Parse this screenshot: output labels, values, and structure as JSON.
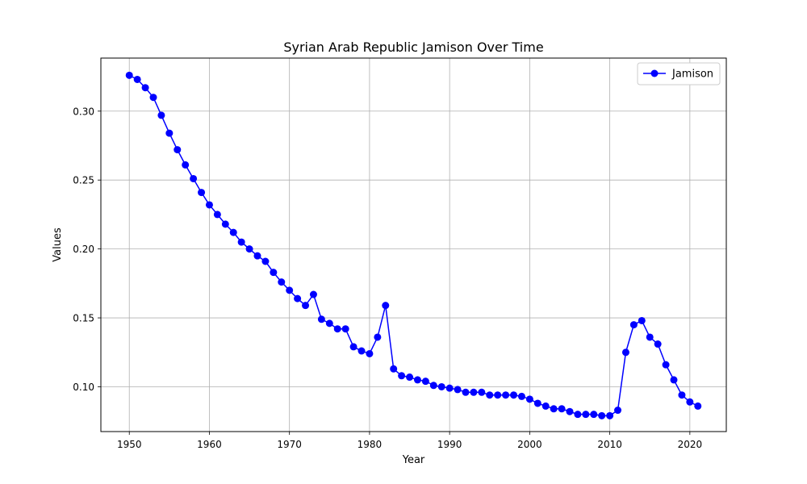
{
  "chart_data": {
    "type": "line",
    "title": "Syrian Arab Republic Jamison Over Time",
    "xlabel": "Year",
    "ylabel": "Values",
    "xlim": [
      1946.45,
      2024.55
    ],
    "ylim": [
      0.0675,
      0.3385
    ],
    "xticks": [
      1950,
      1960,
      1970,
      1980,
      1990,
      2000,
      2010,
      2020
    ],
    "yticks": [
      0.1,
      0.15,
      0.2,
      0.25,
      0.3
    ],
    "xtick_labels": [
      "1950",
      "1960",
      "1970",
      "1980",
      "1990",
      "2000",
      "2010",
      "2020"
    ],
    "ytick_labels": [
      "0.10",
      "0.15",
      "0.20",
      "0.25",
      "0.30"
    ],
    "grid": true,
    "legend_position": "upper-right",
    "series": [
      {
        "name": "Jamison",
        "color": "#0000ff",
        "marker": "circle",
        "x": [
          1950,
          1951,
          1952,
          1953,
          1954,
          1955,
          1956,
          1957,
          1958,
          1959,
          1960,
          1961,
          1962,
          1963,
          1964,
          1965,
          1966,
          1967,
          1968,
          1969,
          1970,
          1971,
          1972,
          1973,
          1974,
          1975,
          1976,
          1977,
          1978,
          1979,
          1980,
          1981,
          1982,
          1983,
          1984,
          1985,
          1986,
          1987,
          1988,
          1989,
          1990,
          1991,
          1992,
          1993,
          1994,
          1995,
          1996,
          1997,
          1998,
          1999,
          2000,
          2001,
          2002,
          2003,
          2004,
          2005,
          2006,
          2007,
          2008,
          2009,
          2010,
          2011,
          2012,
          2013,
          2014,
          2015,
          2016,
          2017,
          2018,
          2019,
          2020,
          2021
        ],
        "y": [
          0.326,
          0.323,
          0.317,
          0.31,
          0.297,
          0.284,
          0.272,
          0.261,
          0.251,
          0.241,
          0.232,
          0.225,
          0.218,
          0.212,
          0.205,
          0.2,
          0.195,
          0.191,
          0.183,
          0.176,
          0.17,
          0.164,
          0.159,
          0.167,
          0.149,
          0.146,
          0.142,
          0.142,
          0.129,
          0.126,
          0.124,
          0.136,
          0.159,
          0.113,
          0.108,
          0.107,
          0.105,
          0.104,
          0.101,
          0.1,
          0.099,
          0.098,
          0.096,
          0.096,
          0.096,
          0.094,
          0.094,
          0.094,
          0.094,
          0.093,
          0.091,
          0.088,
          0.086,
          0.084,
          0.084,
          0.082,
          0.08,
          0.08,
          0.08,
          0.079,
          0.079,
          0.083,
          0.125,
          0.145,
          0.148,
          0.136,
          0.131,
          0.116,
          0.105,
          0.094,
          0.089,
          0.086
        ]
      }
    ]
  }
}
